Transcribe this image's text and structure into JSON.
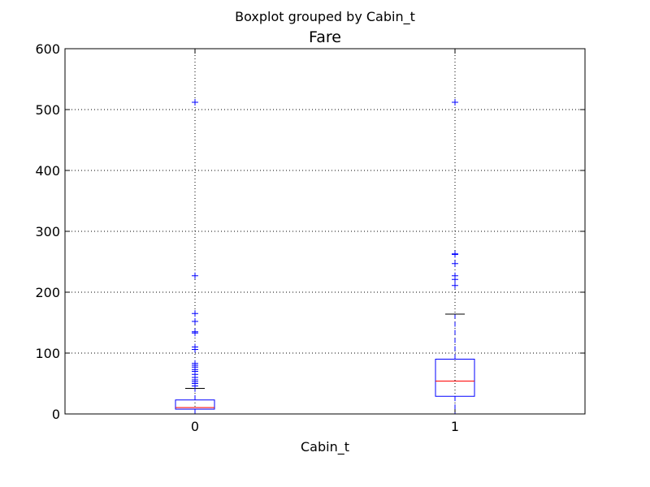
{
  "chart_data": {
    "type": "box",
    "suptitle": "Boxplot grouped by Cabin_t",
    "title": "Fare",
    "xlabel": "Cabin_t",
    "ylabel": "",
    "ylim": [
      0,
      600
    ],
    "yticks": [
      0,
      100,
      200,
      300,
      400,
      500,
      600
    ],
    "grid": true,
    "grid_style": "dotted",
    "categories": [
      "0",
      "1"
    ],
    "boxes": [
      {
        "category": "0",
        "q1": 7.9,
        "median": 10.5,
        "q3": 23,
        "whisker_low": 0,
        "whisker_high": 42,
        "outliers": [
          46,
          50,
          53,
          56,
          60,
          65,
          70,
          73,
          77,
          80,
          83,
          106,
          110,
          133,
          135,
          152,
          165,
          227,
          512
        ]
      },
      {
        "category": "1",
        "q1": 29,
        "median": 54,
        "q3": 90,
        "whisker_low": 0,
        "whisker_high": 164,
        "outliers": [
          211,
          221,
          227,
          247,
          262,
          263,
          512
        ]
      }
    ],
    "colors": {
      "box": "#0000ff",
      "median": "#ff0000",
      "whisker": "#0000ff",
      "cap": "#000000",
      "outlier": "#0000ff",
      "grid": "#000000"
    }
  }
}
